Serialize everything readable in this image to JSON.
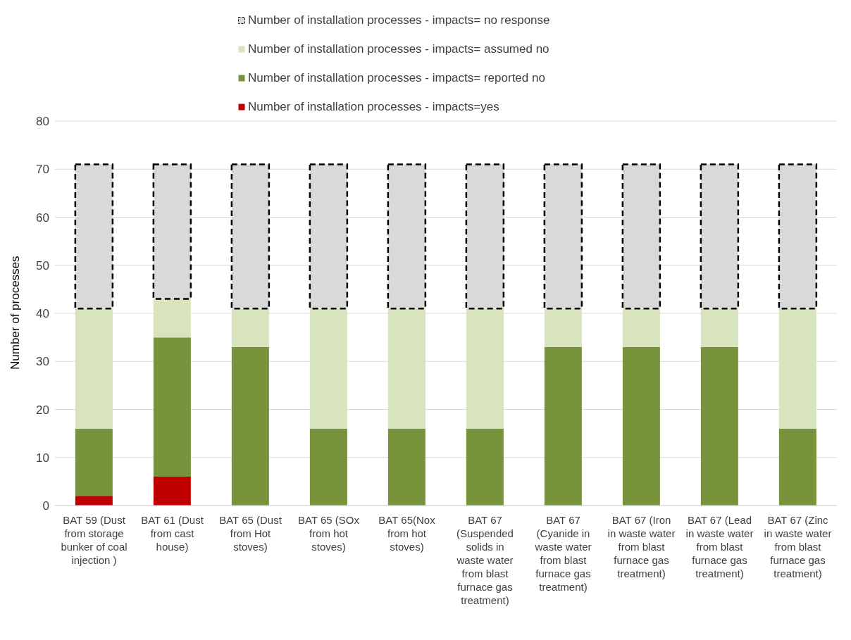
{
  "chart_data": {
    "type": "bar",
    "stacked": true,
    "ylabel": "Number of processes",
    "categories": [
      "BAT 59 (Dust from storage bunker of coal injection )",
      "BAT 61 (Dust from cast house)",
      "BAT 65 (Dust from Hot stoves)",
      "BAT 65 (SOx from hot stoves)",
      "BAT 65(Nox from hot stoves)",
      "BAT 67 (Suspended solids in waste water from blast furnace gas treatment)",
      "BAT 67 (Cyanide in waste water from blast furnace gas treatment)",
      "BAT 67 (Iron in waste water from blast furnace gas treatment)",
      "BAT 67 (Lead in waste water from blast furnace gas treatment)",
      "BAT 67 (Zinc in waste water from blast furnace gas treatment)"
    ],
    "series": [
      {
        "name": "Number of installation processes - impacts=yes",
        "color": "#c00000",
        "values": [
          2,
          6,
          0,
          0,
          0,
          0,
          0,
          0,
          0,
          0
        ]
      },
      {
        "name": "Number of installation processes - impacts= reported no",
        "color": "#77933c",
        "values": [
          14,
          29,
          33,
          16,
          16,
          16,
          33,
          33,
          33,
          16
        ]
      },
      {
        "name": "Number of installation processes - impacts= assumed no",
        "color": "#d7e4bd",
        "values": [
          25,
          8,
          8,
          25,
          25,
          25,
          8,
          8,
          8,
          25
        ]
      },
      {
        "name": "Number of installation processes - impacts= no response",
        "color": "#d9d9d9",
        "line_style": "dashed",
        "values": [
          30,
          28,
          30,
          30,
          30,
          30,
          30,
          30,
          30,
          30
        ]
      }
    ],
    "ylim": [
      0,
      80
    ],
    "yticks": [
      0,
      10,
      20,
      30,
      40,
      50,
      60,
      70,
      80
    ],
    "grid": "y",
    "legend": "top"
  }
}
